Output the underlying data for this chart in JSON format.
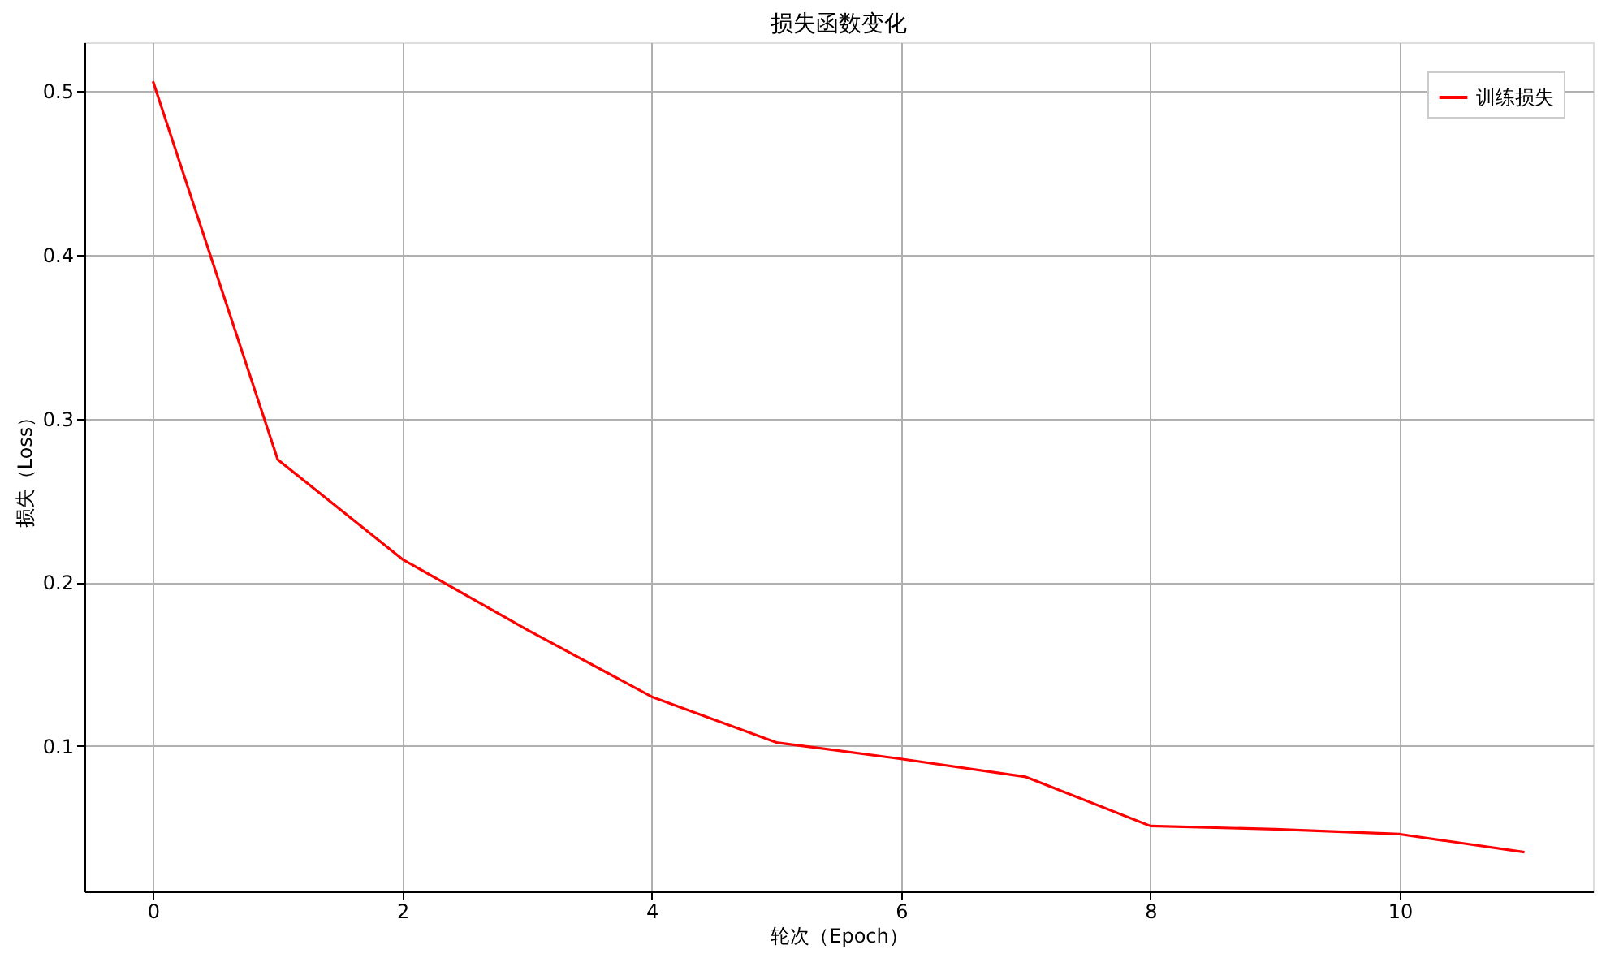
{
  "chart_data": {
    "type": "line",
    "title": "损失函数变化",
    "xlabel": "轮次（Epoch）",
    "ylabel": "损失（Loss）",
    "x": [
      0,
      1,
      2,
      3,
      4,
      5,
      6,
      7,
      8,
      9,
      10,
      11
    ],
    "series": [
      {
        "name": "训练损失",
        "color": "#ff0000",
        "values": [
          0.506,
          0.275,
          0.214,
          0.171,
          0.13,
          0.102,
          0.092,
          0.081,
          0.051,
          0.049,
          0.046,
          0.035
        ]
      }
    ],
    "xlim": [
      -0.55,
      11.55
    ],
    "xticks": [
      0,
      2,
      4,
      6,
      8,
      10
    ],
    "ylim": [
      0.011,
      0.53
    ],
    "yticks": [
      0.1,
      0.2,
      0.3,
      0.4,
      0.5
    ],
    "grid": true,
    "legend": "top right",
    "marker": "none",
    "line_style": "solid"
  }
}
